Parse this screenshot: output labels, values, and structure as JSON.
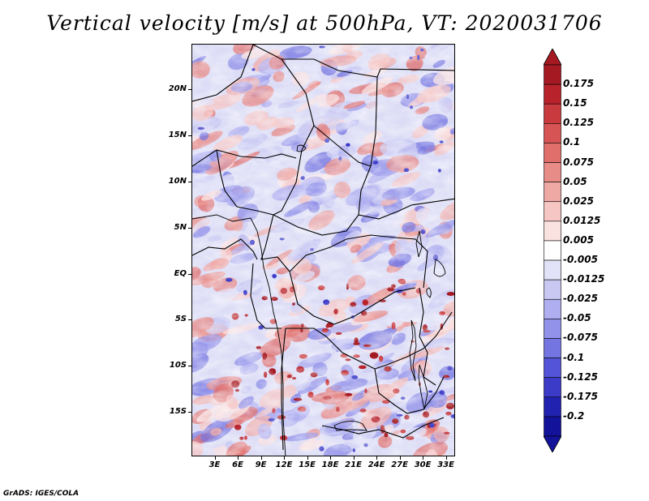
{
  "title": "Vertical velocity [m/s] at 500hPa, VT: 2020031706",
  "credit": "GrADS: IGES/COLA",
  "map": {
    "lat_labels": [
      "20N",
      "15N",
      "10N",
      "5N",
      "EQ",
      "5S",
      "10S",
      "15S"
    ],
    "lat_values": [
      20,
      15,
      10,
      5,
      0,
      -5,
      -10,
      -15
    ],
    "lon_labels": [
      "3E",
      "6E",
      "9E",
      "12E",
      "15E",
      "18E",
      "21E",
      "24E",
      "27E",
      "30E",
      "33E"
    ],
    "lon_values": [
      3,
      6,
      9,
      12,
      15,
      18,
      21,
      24,
      27,
      30,
      33
    ],
    "lat_range": [
      -19.8,
      24.9
    ],
    "lon_range": [
      0,
      34.2
    ]
  },
  "colorbar": {
    "labels": [
      "0.175",
      "0.15",
      "0.125",
      "0.1",
      "0.075",
      "0.05",
      "0.025",
      "0.0125",
      "0.005",
      "-0.005",
      "-0.0125",
      "-0.025",
      "-0.05",
      "-0.075",
      "-0.1",
      "-0.125",
      "-0.175",
      "-0.2"
    ],
    "colors": [
      "#a51a22",
      "#b8232b",
      "#c93a3e",
      "#d75454",
      "#e06f6c",
      "#e88c88",
      "#efa9a5",
      "#f5c6c3",
      "#fae2e0",
      "#ffffff",
      "#e2e2f8",
      "#c8c8f3",
      "#aeaef0",
      "#9292ea",
      "#7575e2",
      "#5454d8",
      "#3b3bc8",
      "#2222b0",
      "#12129a"
    ],
    "top_color": "#a51a22",
    "bottom_color": "#12129a"
  }
}
